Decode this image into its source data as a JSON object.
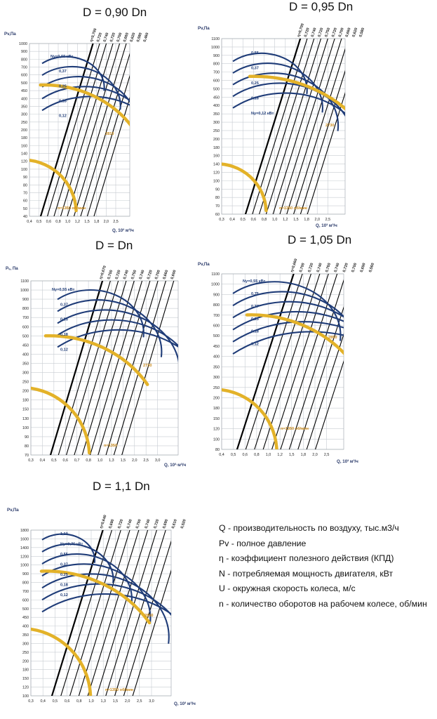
{
  "colors": {
    "grid": "#c7ccd2",
    "lines": "#000000",
    "power": "#1f3c78",
    "speed": "#e3b229",
    "annotation": "#c9891a",
    "label_blue": "#1f3c78"
  },
  "legend": [
    "Q - производительность по воздуху, тыс.м3/ч",
    "Pv - полное давление",
    "η - коэффициент полезного действия (КПД)",
    "N - потребляемая мощность двигателя, кВт",
    "U - окружная скорость колеса, м/с",
    "n - количество оборотов на рабочем колесе, об/мин"
  ],
  "chart_data": [
    {
      "type": "line",
      "title": "D = 0,90 Dn",
      "ylabel": "Pv,Па",
      "xlabel": "Q, 10³ м³/ч",
      "ytick_labels": [
        "1000",
        "900",
        "800",
        "700",
        "600",
        "500",
        "450",
        "400",
        "350",
        "300",
        "250",
        "200",
        "180",
        "160",
        "140",
        "120",
        "100",
        "90",
        "80",
        "70",
        "60",
        "50",
        "40"
      ],
      "xtick_labels": [
        "0,4",
        "0,5",
        "0,6",
        "0,8",
        "1,0",
        "1,2",
        "1,5",
        "1,8",
        "2,0",
        "2,5"
      ],
      "efficiency_labels": [
        "η=0,700",
        "0,720",
        "0,740",
        "0,720",
        "0,700",
        "0,660",
        "0,620",
        "0,580",
        "0,460"
      ],
      "power_labels": [
        "Ny=0,55 кВт",
        "0,37",
        "0,25",
        "0,18",
        "0,12"
      ],
      "speed_labels": [
        "n=1350 об/мин",
        "2810"
      ]
    },
    {
      "type": "line",
      "title": "D = 0,95 Dn",
      "ylabel": "Pv,Па",
      "xlabel": "Q, 10³ м³/ч",
      "ytick_labels": [
        "1100",
        "1000",
        "900",
        "800",
        "700",
        "600",
        "500",
        "450",
        "400",
        "350",
        "300",
        "250",
        "200",
        "180",
        "160",
        "140",
        "120",
        "100",
        "90",
        "80",
        "70",
        "60"
      ],
      "xtick_labels": [
        "0,3",
        "0,4",
        "0,5",
        "0,6",
        "0,8",
        "1,0",
        "1,2",
        "1,5",
        "1,8",
        "2,0",
        "2,5"
      ],
      "efficiency_labels": [
        "η=0,700",
        "0,720",
        "0,740",
        "0,720",
        "0,750",
        "0,720",
        "0,700",
        "0,660",
        "0,620",
        "0,580"
      ],
      "power_labels": [
        "0,55",
        "0,37",
        "0,25",
        "0,18",
        "Ny=0,12 кВт"
      ],
      "speed_labels": [
        "n=1350 об/мин",
        "2730"
      ]
    },
    {
      "type": "line",
      "title": "D = Dn",
      "ylabel": "Pᵥ, Па",
      "xlabel": "Q, 10³·м³/ч",
      "ytick_labels": [
        "1100",
        "1000",
        "900",
        "800",
        "700",
        "600",
        "500",
        "450",
        "400",
        "350",
        "300",
        "250",
        "200",
        "180",
        "150",
        "130",
        "100",
        "90",
        "80",
        "70"
      ],
      "xtick_labels": [
        "0,3",
        "0,4",
        "0,5",
        "0,6",
        "0,7",
        "0,8",
        "1,0",
        "1,3",
        "1,5",
        "2,0",
        "2,5",
        "3,0"
      ],
      "efficiency_labels": [
        "η=0,670",
        "0,700",
        "0,720",
        "0,740",
        "0,750",
        "0,740",
        "0,720",
        "0,700",
        "0,660",
        "0,600"
      ],
      "power_labels": [
        "Ny=0,55 кВт",
        "0,37",
        "0,25",
        "0,18",
        "0,12"
      ],
      "speed_labels": [
        "n=1350",
        "2730"
      ]
    },
    {
      "type": "line",
      "title": "D = 1,05 Dn",
      "ylabel": "Pv,Па",
      "xlabel": "Q, 10³ м³/ч",
      "ytick_labels": [
        "1100",
        "1000",
        "900",
        "800",
        "700",
        "600",
        "500",
        "450",
        "400",
        "350",
        "300",
        "250",
        "200",
        "180",
        "150",
        "120",
        "100",
        "80"
      ],
      "xtick_labels": [
        "0,4",
        "0,5",
        "0,6",
        "0,8",
        "1,0",
        "1,2",
        "1,5",
        "1,8",
        "2,0",
        "2,5"
      ],
      "efficiency_labels": [
        "η=0,660",
        "0,700",
        "0,720",
        "0,740",
        "0,760",
        "0,740",
        "0,720",
        "0,700",
        "0,650",
        "0,560"
      ],
      "power_labels": [
        "Ny=0,55 кВт",
        "0,75",
        "0,37",
        "0,25",
        "0,18",
        "0,12"
      ],
      "speed_labels": [
        "n=1350 об/мин",
        "2850"
      ]
    },
    {
      "type": "line",
      "title": "D = 1,1 Dn",
      "ylabel": "Pv,Па",
      "xlabel": "Q, 10³ м³/ч",
      "ytick_labels": [
        "1800",
        "1600",
        "1400",
        "1200",
        "1000",
        "900",
        "800",
        "700",
        "600",
        "500",
        "450",
        "400",
        "350",
        "300",
        "250",
        "200",
        "180",
        "150",
        "120",
        "100"
      ],
      "xtick_labels": [
        "0,3",
        "0,4",
        "0,5",
        "0,6",
        "0,8",
        "1,0",
        "1,3",
        "1,5",
        "2,0",
        "2,5",
        "3,0"
      ],
      "efficiency_labels": [
        "η=0,640",
        "0,690",
        "0,720",
        "0,740",
        "0,750",
        "0,740",
        "0,720",
        "0,690",
        "0,610",
        "0,520"
      ],
      "power_labels": [
        "1,10",
        "Ny=0,75 кВт",
        "0,55",
        "0,37",
        "0,25",
        "0,18",
        "0,12"
      ],
      "speed_labels": [
        "n=1350 об/мин",
        "2850"
      ]
    }
  ]
}
